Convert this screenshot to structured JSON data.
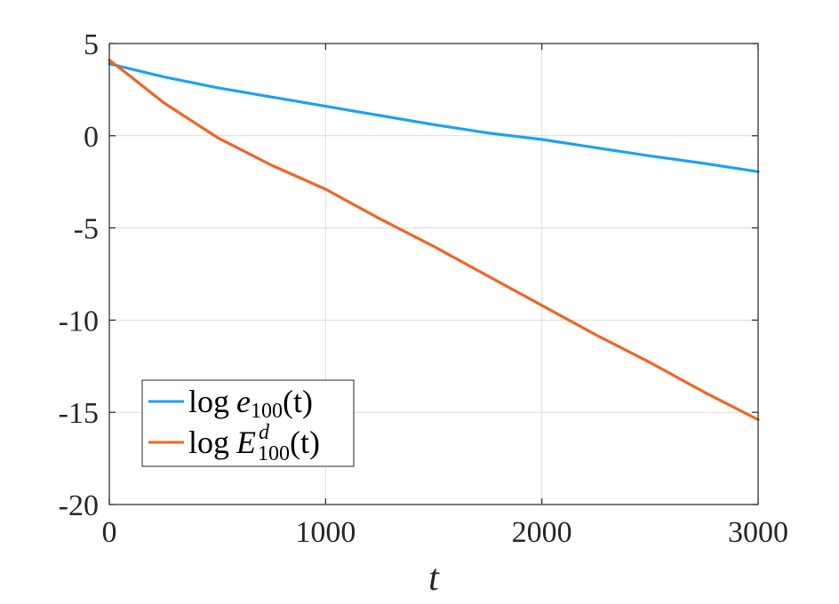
{
  "chart_data": {
    "type": "line",
    "xlabel": "t",
    "ylabel": "",
    "xlim": [
      0,
      3000
    ],
    "ylim": [
      -20,
      5
    ],
    "xticks": [
      0,
      1000,
      2000,
      3000
    ],
    "yticks": [
      5,
      0,
      -5,
      -10,
      -15,
      -20
    ],
    "xtick_labels": [
      "0",
      "1000",
      "2000",
      "3000"
    ],
    "ytick_labels": [
      "5",
      "0",
      "-5",
      "-10",
      "-15",
      "-20"
    ],
    "grid": true,
    "legend_position": "lower-left",
    "series": [
      {
        "name": "log e_100(t)",
        "legend_parts": {
          "fn": "log",
          "var": "e",
          "sub": "100",
          "sup": "",
          "arg": "(t)"
        },
        "color": "#1ca1f2",
        "x": [
          0,
          250,
          500,
          750,
          1000,
          1250,
          1500,
          1750,
          2000,
          2250,
          2500,
          2750,
          3000
        ],
        "y": [
          3.9,
          3.2,
          2.6,
          2.1,
          1.6,
          1.1,
          0.6,
          0.15,
          -0.2,
          -0.65,
          -1.1,
          -1.5,
          -1.95
        ]
      },
      {
        "name": "log E^d_100(t)",
        "legend_parts": {
          "fn": "log",
          "var": "E",
          "sub": "100",
          "sup": "d",
          "arg": "(t)"
        },
        "color": "#f26522",
        "x": [
          0,
          100,
          250,
          500,
          750,
          1000,
          1250,
          1500,
          1750,
          2000,
          2250,
          2500,
          2750,
          3000
        ],
        "y": [
          4.1,
          3.2,
          1.8,
          -0.1,
          -1.6,
          -2.9,
          -4.5,
          -6.0,
          -7.6,
          -9.2,
          -10.8,
          -12.3,
          -13.9,
          -15.4
        ]
      }
    ]
  }
}
